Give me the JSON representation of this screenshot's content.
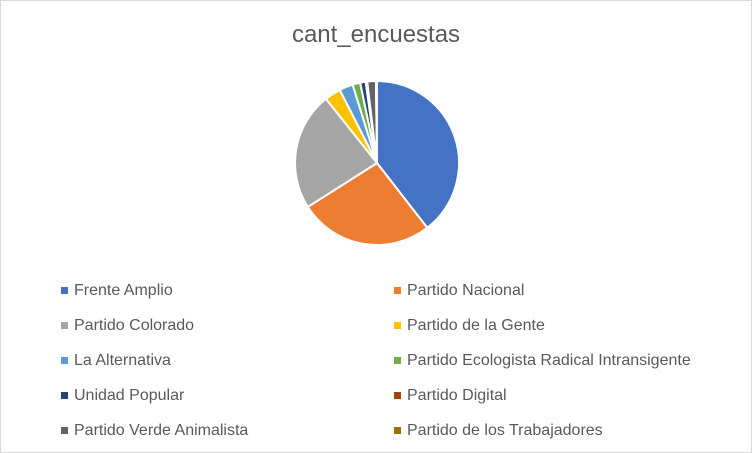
{
  "chart_data": {
    "type": "pie",
    "title": "cant_encuestas",
    "legend_position": "bottom",
    "categories": [
      "Frente Amplio",
      "Partido Nacional",
      "Partido Colorado",
      "Partido de la Gente",
      "La Alternativa",
      "Partido Ecologista Radical Intransigente",
      "Unidad Popular",
      "Partido Digital",
      "Partido Verde Animalista",
      "Partido de los Trabajadores"
    ],
    "values": [
      39.5,
      26.5,
      23.3,
      3.2,
      2.7,
      1.5,
      1.1,
      0.3,
      1.7,
      0.2
    ],
    "colors": [
      "#4472c4",
      "#ed7d31",
      "#a5a5a5",
      "#ffc000",
      "#5b9bd5",
      "#70ad47",
      "#264478",
      "#9e480e",
      "#636363",
      "#997300"
    ]
  }
}
